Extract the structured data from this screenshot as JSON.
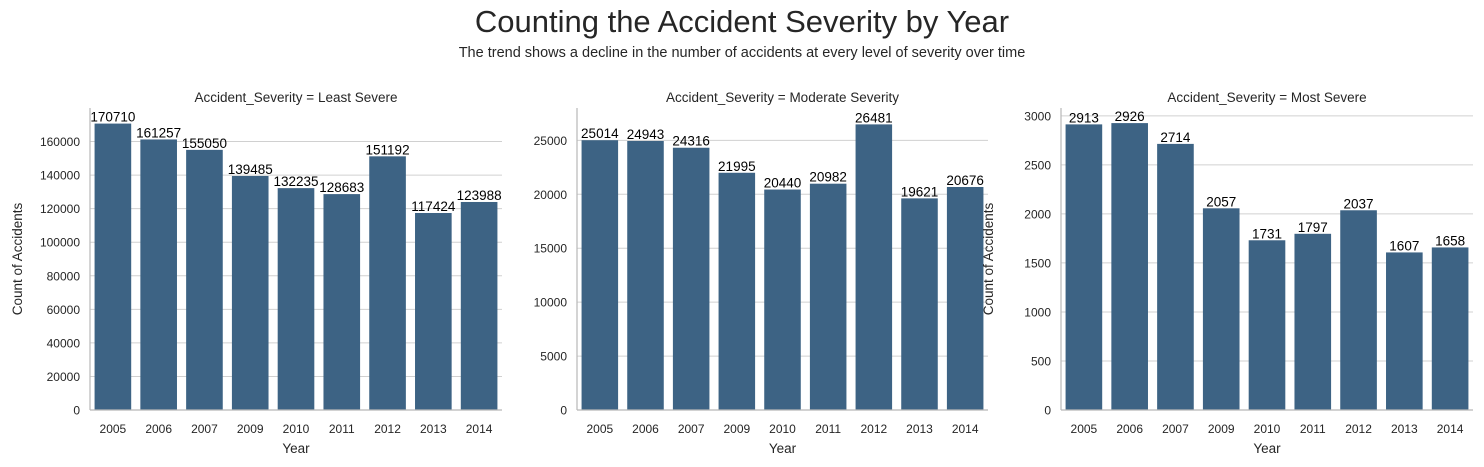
{
  "title": "Counting the Accident Severity by Year",
  "subtitle": "The trend shows a decline in the number of accidents at every level of severity over time",
  "colors": {
    "bar": "#3d6384",
    "grid": "#d0d0d0",
    "axis": "#b8b8b8",
    "text": "#262626",
    "label": "#000000"
  },
  "chart_data": [
    {
      "type": "bar",
      "title": "Accident_Severity = Least Severe",
      "xlabel": "Year",
      "ylabel": "Count of Accidents",
      "categories": [
        "2005",
        "2006",
        "2007",
        "2009",
        "2010",
        "2011",
        "2012",
        "2013",
        "2014"
      ],
      "values": [
        170710,
        161257,
        155050,
        139485,
        132235,
        128683,
        151192,
        117424,
        123988
      ],
      "ylim": [
        0,
        180000
      ],
      "yticks": [
        0,
        20000,
        40000,
        60000,
        80000,
        100000,
        120000,
        140000,
        160000
      ],
      "grid": true
    },
    {
      "type": "bar",
      "title": "Accident_Severity = Moderate Severity",
      "xlabel": "Year",
      "ylabel": "",
      "categories": [
        "2005",
        "2006",
        "2007",
        "2009",
        "2010",
        "2011",
        "2012",
        "2013",
        "2014"
      ],
      "values": [
        25014,
        24943,
        24316,
        21995,
        20440,
        20982,
        26481,
        19621,
        20676
      ],
      "ylim": [
        0,
        28000
      ],
      "yticks": [
        0,
        5000,
        10000,
        15000,
        20000,
        25000
      ],
      "grid": true
    },
    {
      "type": "bar",
      "title": "Accident_Severity = Most Severe",
      "xlabel": "Year",
      "ylabel": "Count of Accidents",
      "categories": [
        "2005",
        "2006",
        "2007",
        "2009",
        "2010",
        "2011",
        "2012",
        "2013",
        "2014"
      ],
      "values": [
        2913,
        2926,
        2714,
        2057,
        1731,
        1797,
        2037,
        1607,
        1658
      ],
      "ylim": [
        0,
        3080
      ],
      "yticks": [
        0,
        500,
        1000,
        1500,
        2000,
        2500,
        3000
      ],
      "grid": true
    }
  ]
}
